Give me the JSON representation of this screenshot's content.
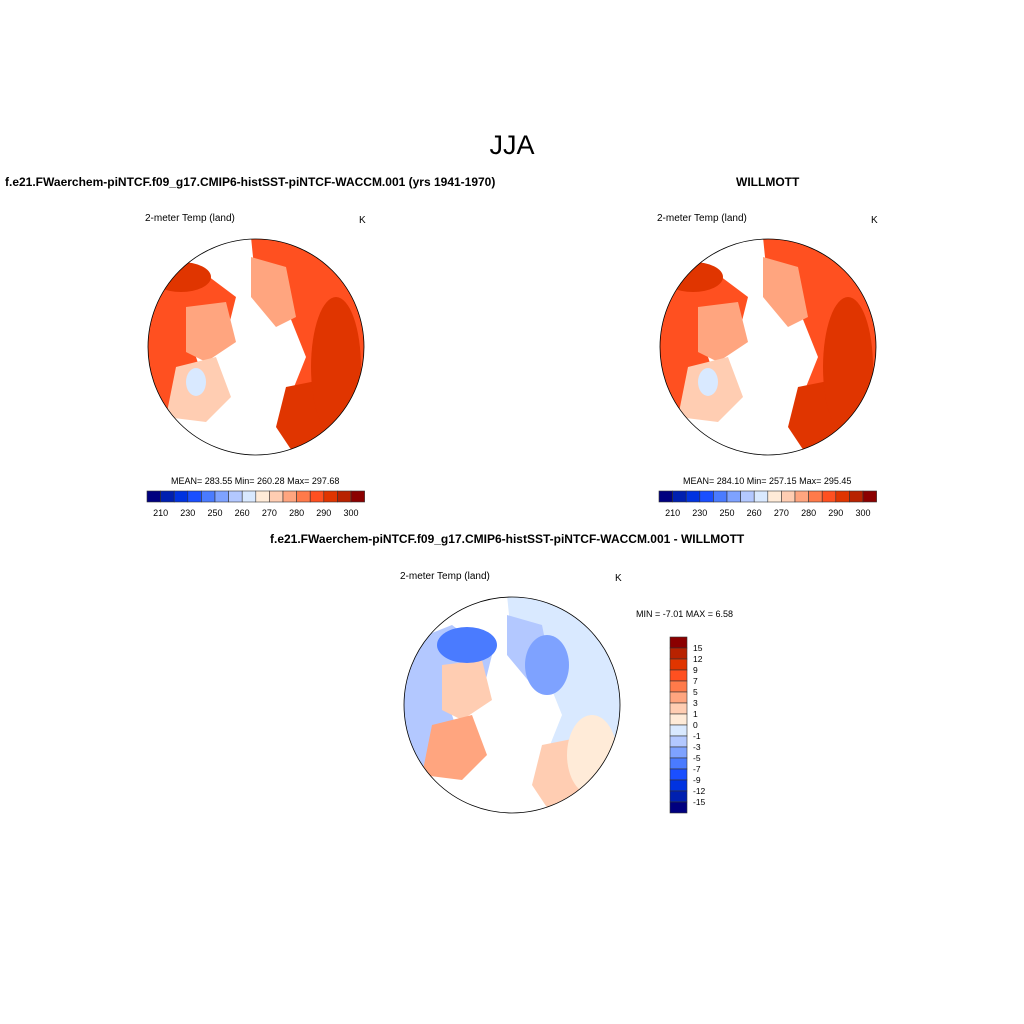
{
  "main_title": "JJA",
  "palette": [
    "#00007f",
    "#0020b0",
    "#0033e0",
    "#1a4fff",
    "#4a7bff",
    "#7ea2ff",
    "#b3c8ff",
    "#d9e9ff",
    "#ffebd8",
    "#ffcdb2",
    "#ffa57f",
    "#ff7a4a",
    "#ff5020",
    "#e03500",
    "#b82200",
    "#8b0000"
  ],
  "chart_data": [
    {
      "type": "heatmap",
      "title": "f.e21.FWaerchem-piNTCF.f09_g17.CMIP6-histSST-piNTCF-WACCM.001 (yrs 1941-1970)",
      "variable": "2-meter Temp (land)",
      "units": "K",
      "stats": "MEAN= 283.55  Min= 260.28  Max= 297.68",
      "levels": [
        210,
        220,
        230,
        240,
        250,
        255,
        260,
        265,
        270,
        275,
        280,
        285,
        290,
        295,
        300
      ],
      "tick_labels": [
        "210",
        "230",
        "250",
        "260",
        "270",
        "280",
        "290",
        "300"
      ]
    },
    {
      "type": "heatmap",
      "title": "WILLMOTT",
      "variable": "2-meter Temp (land)",
      "units": "K",
      "stats": "MEAN= 284.10  Min= 257.15  Max= 295.45",
      "levels": [
        210,
        220,
        230,
        240,
        250,
        255,
        260,
        265,
        270,
        275,
        280,
        285,
        290,
        295,
        300
      ],
      "tick_labels": [
        "210",
        "230",
        "250",
        "260",
        "270",
        "280",
        "290",
        "300"
      ]
    },
    {
      "type": "heatmap",
      "title": "f.e21.FWaerchem-piNTCF.f09_g17.CMIP6-histSST-piNTCF-WACCM.001 - WILLMOTT",
      "variable": "2-meter Temp (land)",
      "units": "K",
      "stats": "MIN =  -7.01 MAX =   6.58",
      "levels": [
        -15,
        -12,
        -9,
        -7,
        -5,
        -3,
        -1,
        0,
        1,
        3,
        5,
        7,
        9,
        12,
        15
      ],
      "tick_labels": [
        "15",
        "12",
        "9",
        "7",
        "5",
        "3",
        "1",
        "0",
        "-1",
        "-3",
        "-5",
        "-7",
        "-9",
        "-12",
        "-15"
      ]
    }
  ]
}
